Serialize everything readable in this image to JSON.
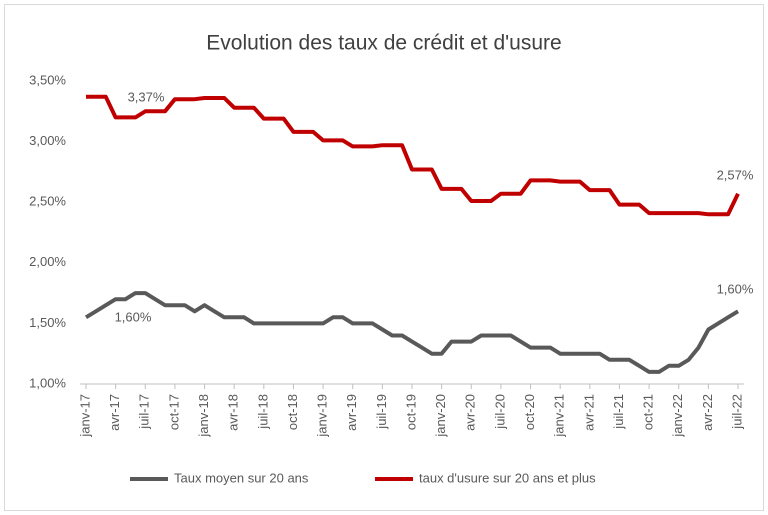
{
  "chart_data": {
    "type": "line",
    "title": "Evolution des taux de crédit et d'usure",
    "categories": [
      "janv-17",
      null,
      null,
      "avr-17",
      null,
      null,
      "juil-17",
      null,
      null,
      "oct-17",
      null,
      null,
      "janv-18",
      null,
      null,
      "avr-18",
      null,
      null,
      "juil-18",
      null,
      null,
      "oct-18",
      null,
      null,
      "janv-19",
      null,
      null,
      "avr-19",
      null,
      null,
      "juil-19",
      null,
      null,
      "oct-19",
      null,
      null,
      "janv-20",
      null,
      null,
      "avr-20",
      null,
      null,
      "juil-20",
      null,
      null,
      "oct-20",
      null,
      null,
      "janv-21",
      null,
      null,
      "avr-21",
      null,
      null,
      "juil-21",
      null,
      null,
      "oct-21",
      null,
      null,
      "janv-22",
      null,
      null,
      "avr-22",
      null,
      null,
      "juil-22"
    ],
    "series": [
      {
        "name": "Taux moyen sur 20 ans",
        "color": "#595959",
        "values": [
          1.55,
          1.6,
          1.65,
          1.7,
          1.7,
          1.75,
          1.75,
          1.7,
          1.65,
          1.65,
          1.65,
          1.6,
          1.65,
          1.6,
          1.55,
          1.55,
          1.55,
          1.5,
          1.5,
          1.5,
          1.5,
          1.5,
          1.5,
          1.5,
          1.5,
          1.55,
          1.55,
          1.5,
          1.5,
          1.5,
          1.45,
          1.4,
          1.4,
          1.35,
          1.3,
          1.25,
          1.25,
          1.35,
          1.35,
          1.35,
          1.4,
          1.4,
          1.4,
          1.4,
          1.35,
          1.3,
          1.3,
          1.3,
          1.25,
          1.25,
          1.25,
          1.25,
          1.25,
          1.2,
          1.2,
          1.2,
          1.15,
          1.1,
          1.1,
          1.15,
          1.15,
          1.2,
          1.3,
          1.45,
          1.5,
          1.55,
          1.6
        ]
      },
      {
        "name": "taux d'usure sur 20 ans et plus",
        "color": "#c00000",
        "values": [
          3.37,
          3.37,
          3.37,
          3.2,
          3.2,
          3.2,
          3.25,
          3.25,
          3.25,
          3.35,
          3.35,
          3.35,
          3.36,
          3.36,
          3.36,
          3.28,
          3.28,
          3.28,
          3.19,
          3.19,
          3.19,
          3.08,
          3.08,
          3.08,
          3.01,
          3.01,
          3.01,
          2.96,
          2.96,
          2.96,
          2.97,
          2.97,
          2.97,
          2.77,
          2.77,
          2.77,
          2.61,
          2.61,
          2.61,
          2.51,
          2.51,
          2.51,
          2.57,
          2.57,
          2.57,
          2.68,
          2.68,
          2.68,
          2.67,
          2.67,
          2.67,
          2.6,
          2.6,
          2.6,
          2.48,
          2.48,
          2.48,
          2.41,
          2.41,
          2.41,
          2.41,
          2.41,
          2.41,
          2.4,
          2.4,
          2.4,
          2.57
        ]
      }
    ],
    "annotations": [
      "3,37%",
      "1,60%",
      "2,57%",
      "1,60%"
    ],
    "ylim": [
      1.0,
      3.5
    ],
    "yticks": [
      {
        "value": 1.0,
        "label": "1,00%"
      },
      {
        "value": 1.5,
        "label": "1,50%"
      },
      {
        "value": 2.0,
        "label": "2,00%"
      },
      {
        "value": 2.5,
        "label": "2,50%"
      },
      {
        "value": 3.0,
        "label": "3,00%"
      },
      {
        "value": 3.5,
        "label": "3,50%"
      }
    ],
    "grid": false,
    "legend": "bottom"
  }
}
